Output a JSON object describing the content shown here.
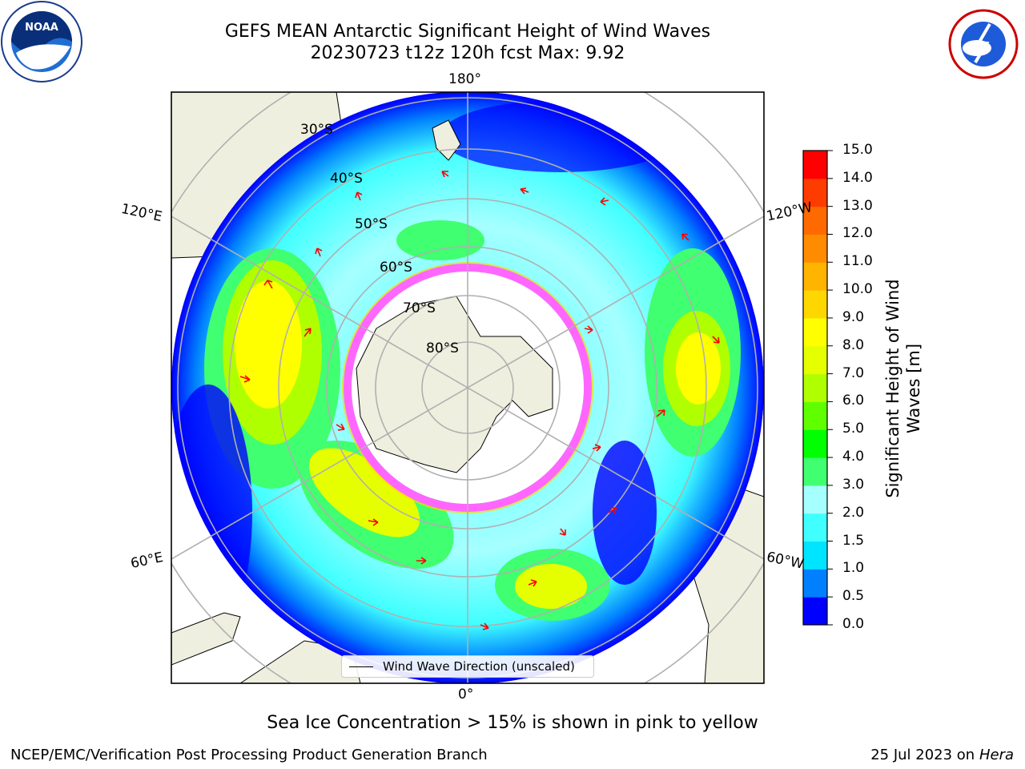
{
  "header": {
    "title_line1": "GEFS MEAN Antarctic Significant Height of Wind Waves",
    "title_line2": "20230723 t12z 120h fcst   Max: 9.92"
  },
  "logos": {
    "left": "noaa-logo",
    "right": "national-weather-service-logo"
  },
  "map": {
    "projection": "south-polar-stereographic",
    "longitude_labels": [
      "180°",
      "120°E",
      "120°W",
      "60°E",
      "60°W",
      "0°"
    ],
    "latitude_labels": [
      "30°S",
      "40°S",
      "50°S",
      "60°S",
      "70°S",
      "80°S"
    ],
    "legend_label": "Wind Wave Direction (unscaled)",
    "colors": {
      "land": "#efefdf",
      "ocean_low": "#0000ff",
      "ice": "#ff66ff",
      "arrows": "#ff0000"
    }
  },
  "colorbar": {
    "title": "Significant Height of Wind Waves [m]",
    "ticks": [
      "15.0",
      "14.0",
      "13.0",
      "12.0",
      "11.0",
      "10.0",
      "9.0",
      "8.0",
      "7.0",
      "6.0",
      "5.0",
      "4.0",
      "3.0",
      "2.0",
      "1.5",
      "1.0",
      "0.5",
      "0.0"
    ],
    "colors": [
      "#0000ff",
      "#0080ff",
      "#00e5ff",
      "#40ffff",
      "#a6ffff",
      "#40ff70",
      "#00ff00",
      "#60ff00",
      "#b0ff00",
      "#e6ff00",
      "#ffff00",
      "#ffd700",
      "#ffb400",
      "#ff8c00",
      "#ff6a00",
      "#ff3c00",
      "#ff0000"
    ]
  },
  "caption": "Sea Ice Concentration > 15% is shown in pink to yellow",
  "footer": {
    "left": "NCEP/EMC/Verification Post Processing Product Generation Branch",
    "right_prefix": "25 Jul 2023 on ",
    "right_host": "Hera"
  }
}
